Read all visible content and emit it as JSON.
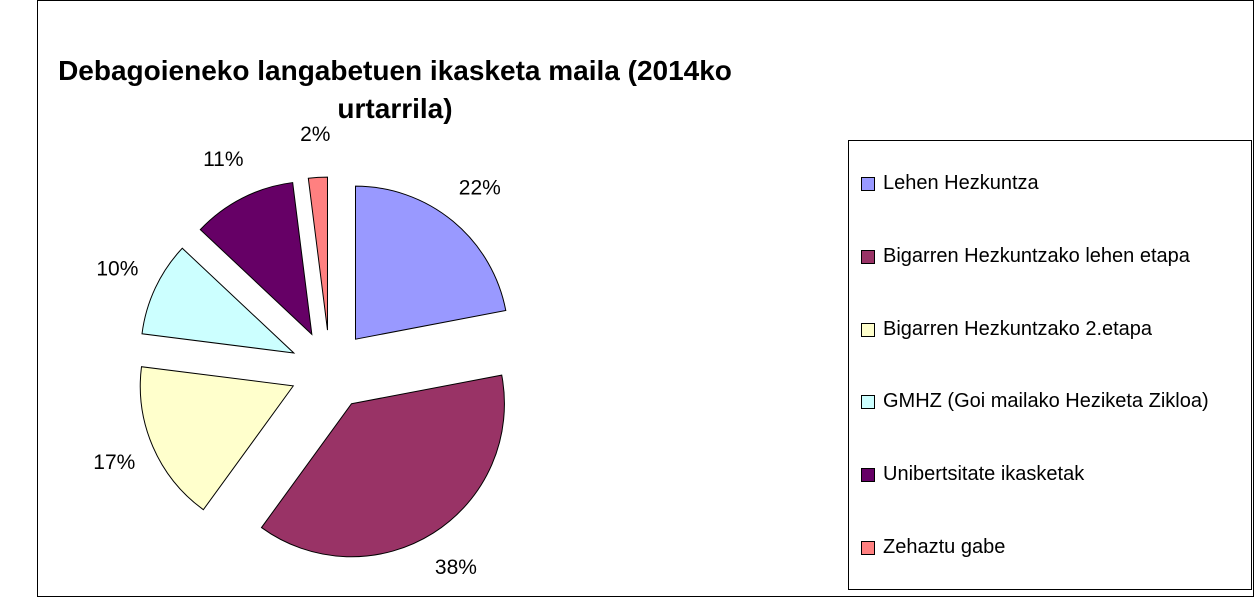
{
  "chart_data": {
    "type": "pie",
    "title": "Debagoieneko langabetuen ikasketa maila (2014ko urtarrila)",
    "categories": [
      "Lehen Hezkuntza",
      "Bigarren Hezkuntzako lehen etapa",
      "Bigarren Hezkuntzako 2.etapa",
      "GMHZ (Goi mailako Heziketa Zikloa)",
      "Unibertsitate ikasketak",
      "Zehaztu gabe"
    ],
    "values": [
      22,
      38,
      17,
      10,
      11,
      2
    ],
    "value_labels": [
      "22%",
      "38%",
      "17%",
      "10%",
      "11%",
      "2%"
    ],
    "colors": [
      "#9999ff",
      "#993366",
      "#ffffcc",
      "#ccffff",
      "#660066",
      "#ff8080"
    ],
    "legend": "right"
  }
}
